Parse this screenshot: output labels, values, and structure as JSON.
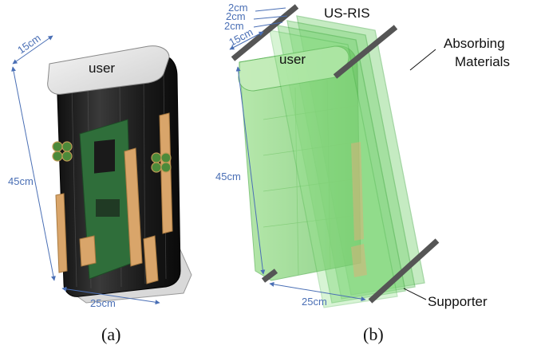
{
  "panel_a": {
    "caption": "(a)",
    "user_label": "user",
    "dims": {
      "depth": "15cm",
      "height": "45cm",
      "width": "25cm"
    }
  },
  "panel_b": {
    "caption": "(b)",
    "user_label": "user",
    "ris_label": "US-RIS",
    "absorbing_line1": "Absorbing",
    "absorbing_line2": "Materials",
    "supporter_label": "Supporter",
    "dims": {
      "gap1": "2cm",
      "gap2": "2cm",
      "gap3": "2cm",
      "depth": "15cm",
      "height": "45cm",
      "width": "25cm"
    }
  },
  "colors": {
    "dimension": "#4a6fb5",
    "router_body": "#1c1c1c",
    "ris_green": "#7fd37a",
    "supporter": "#555555"
  }
}
